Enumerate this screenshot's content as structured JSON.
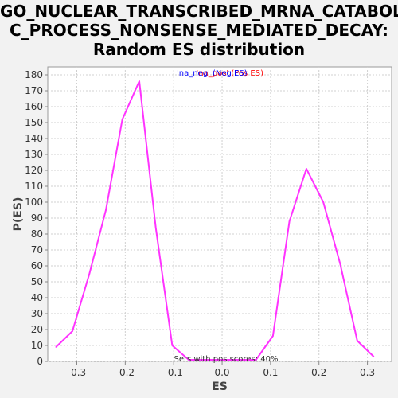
{
  "chart_data": {
    "type": "line",
    "title_lines": [
      "GO_NUCLEAR_TRANSCRIBED_MRNA_CATABOLI",
      "C_PROCESS_NONSENSE_MEDIATED_DECAY:",
      "Random ES distribution"
    ],
    "xlabel": "ES",
    "ylabel": "P(ES)",
    "xlim": [
      -0.36,
      0.35
    ],
    "ylim": [
      0,
      185
    ],
    "xticks": [
      -0.3,
      -0.2,
      -0.1,
      0.0,
      0.1,
      0.2,
      0.3
    ],
    "xtick_labels": [
      "-0.3",
      "-0.2",
      "-0.1",
      "0.0",
      "0.1",
      "0.2",
      "0.3"
    ],
    "yticks": [
      0,
      10,
      20,
      30,
      40,
      50,
      60,
      70,
      80,
      90,
      100,
      110,
      120,
      130,
      140,
      150,
      160,
      170,
      180
    ],
    "grid": true,
    "series": [
      {
        "color": "#ff33ff",
        "x": [
          -0.343,
          -0.309,
          -0.274,
          -0.24,
          -0.206,
          -0.171,
          -0.137,
          -0.103,
          -0.069,
          0.07,
          0.105,
          0.139,
          0.174,
          0.209,
          0.244,
          0.279,
          0.313
        ],
        "y": [
          9,
          19,
          55,
          95,
          152,
          176,
          84,
          10,
          1,
          1,
          16,
          88,
          121,
          100,
          61,
          13,
          3
        ]
      }
    ],
    "legend": {
      "position": "top-center",
      "neg_text": "'na_neg' (Neg ES)",
      "pos_text": "'na_pos' (Pos ES)",
      "neg_color": "#0000ff",
      "pos_color": "#ff0000"
    },
    "annotation": "Sets with pos scores: 40%"
  }
}
